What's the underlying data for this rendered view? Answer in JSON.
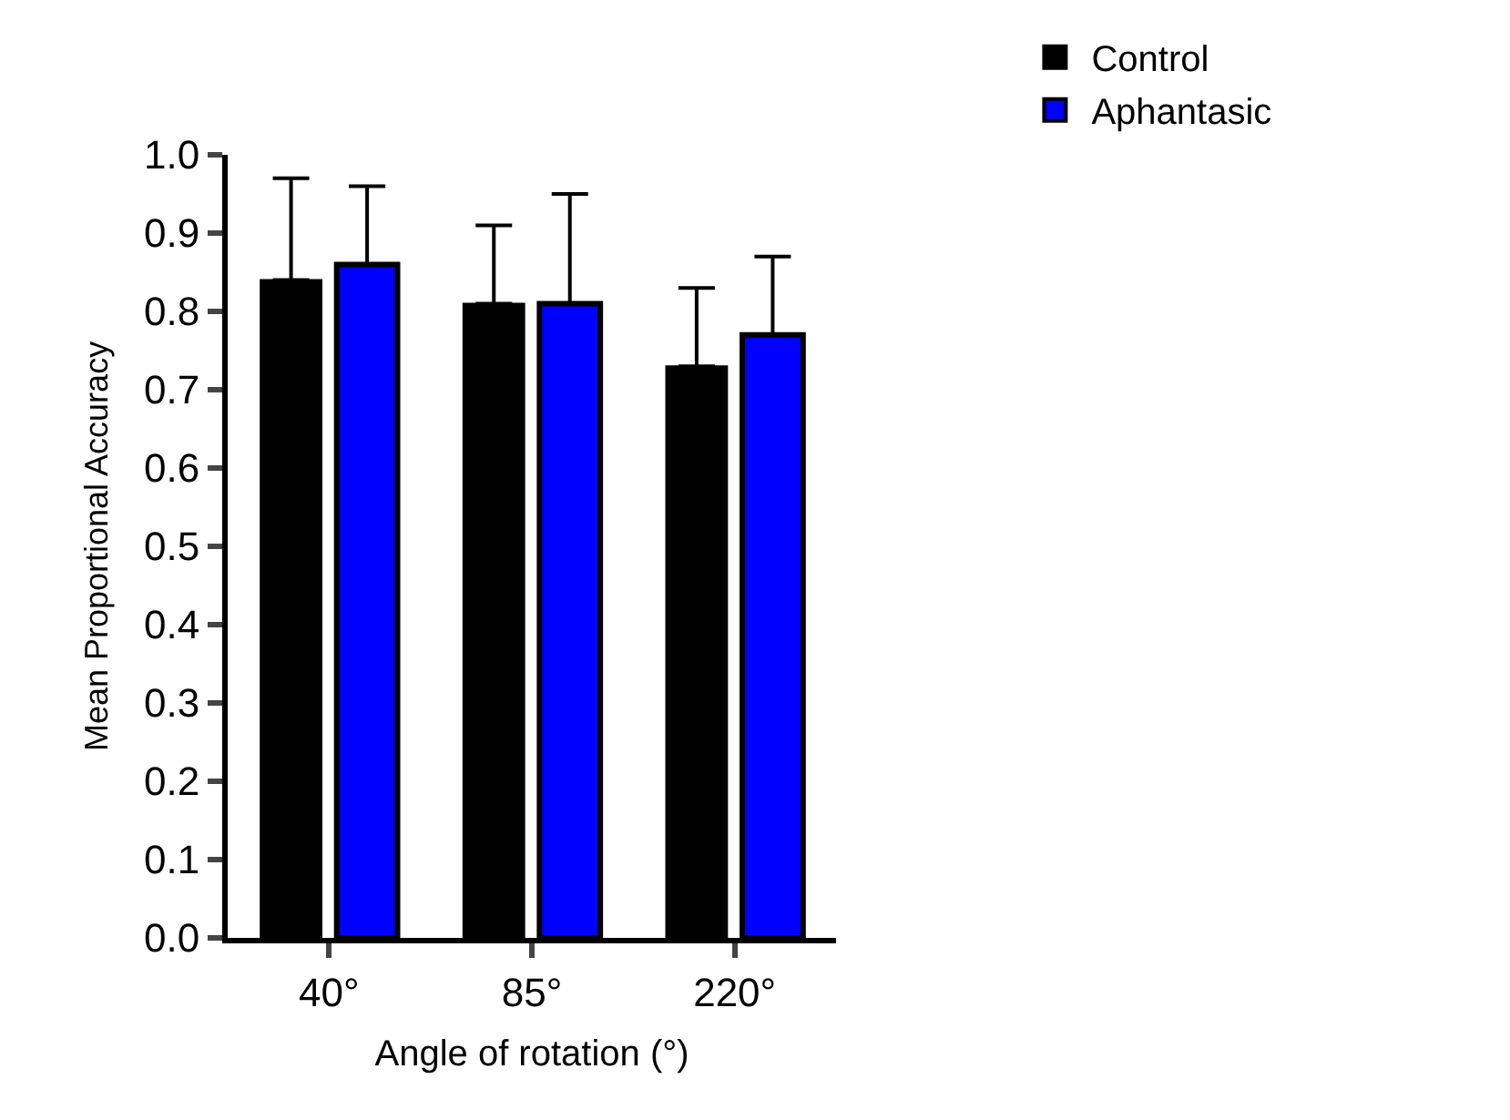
{
  "chart_data": {
    "type": "bar",
    "xlabel": "Angle of rotation (°)",
    "ylabel": "Mean Proportional Accuracy",
    "categories": [
      "40°",
      "85°",
      "220°"
    ],
    "series": [
      {
        "name": "Control",
        "color": "#000000",
        "values": [
          0.84,
          0.81,
          0.73
        ],
        "errors": [
          [
            0.84,
            0.97
          ],
          [
            0.81,
            0.91
          ],
          [
            0.73,
            0.83
          ]
        ]
      },
      {
        "name": "Aphantasic",
        "color": "#0000ff",
        "values": [
          0.86,
          0.81,
          0.77
        ],
        "errors": [
          [
            0.86,
            0.96
          ],
          [
            0.81,
            0.95
          ],
          [
            0.77,
            0.87
          ]
        ]
      }
    ],
    "ylim": [
      0,
      1.0
    ],
    "yticks": [
      "0.0",
      0.1,
      0.2,
      0.3,
      0.4,
      0.5,
      0.6,
      0.7,
      0.8,
      0.9,
      "1.0"
    ],
    "legend": "top right"
  }
}
